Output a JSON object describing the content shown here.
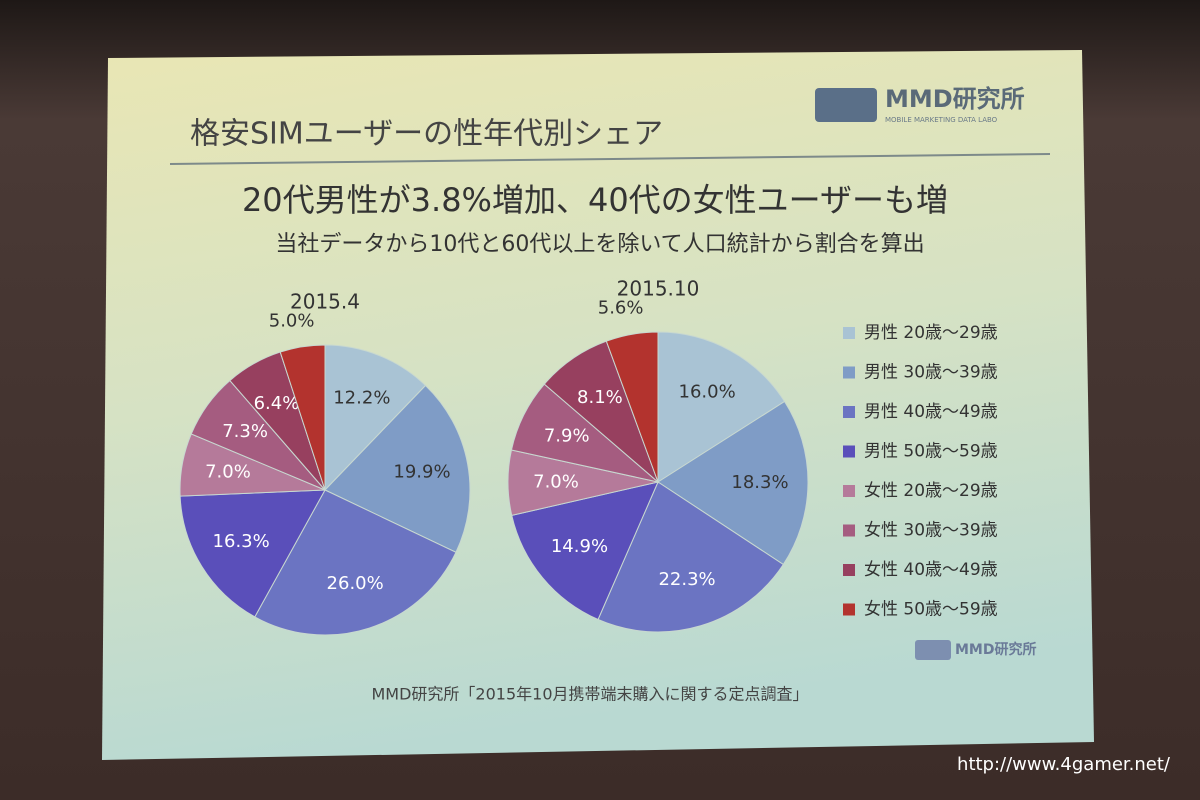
{
  "slide": {
    "title": "格安SIMユーザーの性年代別シェア",
    "logo": "MMD研究所",
    "logo_sub": "MOBILE MARKETING DATA LABO",
    "source": "MMD研究所「2015年10月携帯端末購入に関する定点調査」",
    "watermark": "http://www.4gamer.net/"
  },
  "chart_data": {
    "type": "pie",
    "title": "20代男性が3.8%増加、40代の女性ユーザーも増",
    "subtitle": "当社データから10代と60代以上を除いて人口統計から割合を算出",
    "categories": [
      "男性 20歳～29歳",
      "男性 30歳～39歳",
      "男性 40歳～49歳",
      "男性 50歳～59歳",
      "女性 20歳～29歳",
      "女性 30歳～39歳",
      "女性 40歳～49歳",
      "女性 50歳～59歳"
    ],
    "colors": [
      "#a9c3d4",
      "#7f9cc6",
      "#6b74c2",
      "#5a4fba",
      "#b57a9a",
      "#a55c80",
      "#97405f",
      "#b3332e"
    ],
    "series": [
      {
        "name": "2015.4",
        "values": [
          12.2,
          19.9,
          26.0,
          16.3,
          7.0,
          7.3,
          6.4,
          5.0
        ],
        "value_labels": [
          "12.2%",
          "19.9%",
          "26.0%",
          "16.3%",
          "7.0%",
          "7.3%",
          "6.4%",
          "5.0%"
        ]
      },
      {
        "name": "2015.10",
        "values": [
          16.0,
          18.3,
          22.3,
          14.9,
          7.0,
          7.9,
          8.1,
          5.6
        ],
        "value_labels": [
          "16.0%",
          "18.3%",
          "22.3%",
          "14.9%",
          "7.0%",
          "7.9%",
          "8.1%",
          "5.6%"
        ]
      }
    ],
    "legend": "right"
  }
}
